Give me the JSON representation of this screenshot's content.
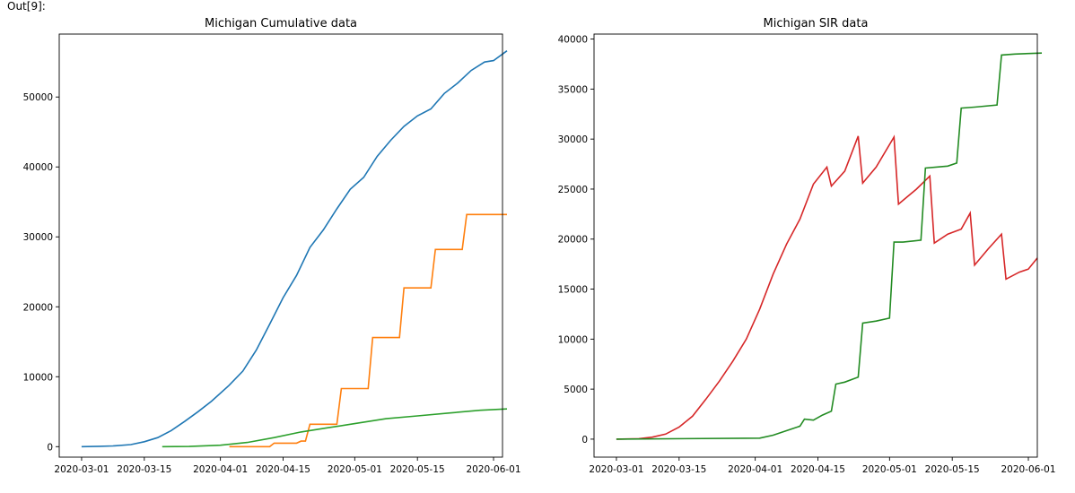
{
  "figure": {
    "label": "Out[9]:"
  },
  "chart_data": [
    {
      "type": "line",
      "title": "Michigan Cumulative data",
      "xlabel": "",
      "ylabel": "",
      "x_ticks": [
        "2020-03-01",
        "2020-03-15",
        "2020-04-01",
        "2020-04-15",
        "2020-05-01",
        "2020-05-15",
        "2020-06-01"
      ],
      "y_ticks": [
        "0",
        "10000",
        "20000",
        "30000",
        "40000",
        "50000"
      ],
      "xlim": [
        "2020-02-25",
        "2020-06-03"
      ],
      "ylim": [
        -1500,
        59000
      ],
      "grid": false,
      "series": [
        {
          "color": "#1f77b4",
          "points": [
            [
              "2020-03-01",
              0
            ],
            [
              "2020-03-05",
              50
            ],
            [
              "2020-03-08",
              100
            ],
            [
              "2020-03-12",
              300
            ],
            [
              "2020-03-15",
              700
            ],
            [
              "2020-03-18",
              1300
            ],
            [
              "2020-03-21",
              2300
            ],
            [
              "2020-03-24",
              3600
            ],
            [
              "2020-03-27",
              5000
            ],
            [
              "2020-03-30",
              6500
            ],
            [
              "2020-04-03",
              8800
            ],
            [
              "2020-04-06",
              10800
            ],
            [
              "2020-04-09",
              13800
            ],
            [
              "2020-04-12",
              17500
            ],
            [
              "2020-04-15",
              21300
            ],
            [
              "2020-04-18",
              24500
            ],
            [
              "2020-04-21",
              28500
            ],
            [
              "2020-04-24",
              31000
            ],
            [
              "2020-04-27",
              34000
            ],
            [
              "2020-04-30",
              36800
            ],
            [
              "2020-05-03",
              38500
            ],
            [
              "2020-05-06",
              41500
            ],
            [
              "2020-05-09",
              43800
            ],
            [
              "2020-05-12",
              45800
            ],
            [
              "2020-05-15",
              47300
            ],
            [
              "2020-05-18",
              48300
            ],
            [
              "2020-05-21",
              50500
            ],
            [
              "2020-05-24",
              52000
            ],
            [
              "2020-05-27",
              53800
            ],
            [
              "2020-05-30",
              55000
            ],
            [
              "2020-06-01",
              55200
            ],
            [
              "2020-06-04",
              56600
            ]
          ]
        },
        {
          "color": "#ff7f0e",
          "points": [
            [
              "2020-04-03",
              0
            ],
            [
              "2020-04-12",
              0
            ],
            [
              "2020-04-13",
              500
            ],
            [
              "2020-04-18",
              500
            ],
            [
              "2020-04-19",
              800
            ],
            [
              "2020-04-20",
              800
            ],
            [
              "2020-04-21",
              3200
            ],
            [
              "2020-04-27",
              3200
            ],
            [
              "2020-04-28",
              8300
            ],
            [
              "2020-05-04",
              8300
            ],
            [
              "2020-05-05",
              15600
            ],
            [
              "2020-05-11",
              15600
            ],
            [
              "2020-05-12",
              22700
            ],
            [
              "2020-05-18",
              22700
            ],
            [
              "2020-05-19",
              28200
            ],
            [
              "2020-05-25",
              28200
            ],
            [
              "2020-05-26",
              33200
            ],
            [
              "2020-06-04",
              33200
            ]
          ]
        },
        {
          "color": "#2ca02c",
          "points": [
            [
              "2020-03-19",
              0
            ],
            [
              "2020-03-25",
              20
            ],
            [
              "2020-04-01",
              200
            ],
            [
              "2020-04-07",
              600
            ],
            [
              "2020-04-13",
              1300
            ],
            [
              "2020-04-19",
              2100
            ],
            [
              "2020-04-25",
              2700
            ],
            [
              "2020-05-01",
              3300
            ],
            [
              "2020-05-08",
              4000
            ],
            [
              "2020-05-15",
              4400
            ],
            [
              "2020-05-22",
              4800
            ],
            [
              "2020-05-29",
              5200
            ],
            [
              "2020-06-04",
              5400
            ]
          ]
        }
      ]
    },
    {
      "type": "line",
      "title": "Michigan SIR data",
      "xlabel": "",
      "ylabel": "",
      "x_ticks": [
        "2020-03-01",
        "2020-03-15",
        "2020-04-01",
        "2020-04-15",
        "2020-05-01",
        "2020-05-15",
        "2020-06-01"
      ],
      "y_ticks": [
        "0",
        "5000",
        "10000",
        "15000",
        "20000",
        "25000",
        "30000",
        "35000",
        "40000"
      ],
      "xlim": [
        "2020-02-25",
        "2020-06-03"
      ],
      "ylim": [
        -1800,
        40500
      ],
      "grid": false,
      "series": [
        {
          "color": "#d62728",
          "points": [
            [
              "2020-03-01",
              0
            ],
            [
              "2020-03-06",
              50
            ],
            [
              "2020-03-09",
              200
            ],
            [
              "2020-03-12",
              500
            ],
            [
              "2020-03-15",
              1200
            ],
            [
              "2020-03-18",
              2300
            ],
            [
              "2020-03-21",
              4000
            ],
            [
              "2020-03-24",
              5800
            ],
            [
              "2020-03-27",
              7800
            ],
            [
              "2020-03-30",
              10000
            ],
            [
              "2020-04-02",
              13000
            ],
            [
              "2020-04-05",
              16500
            ],
            [
              "2020-04-08",
              19500
            ],
            [
              "2020-04-11",
              22000
            ],
            [
              "2020-04-14",
              25500
            ],
            [
              "2020-04-17",
              27200
            ],
            [
              "2020-04-18",
              25300
            ],
            [
              "2020-04-21",
              26800
            ],
            [
              "2020-04-24",
              30300
            ],
            [
              "2020-04-25",
              25600
            ],
            [
              "2020-04-28",
              27200
            ],
            [
              "2020-05-02",
              30200
            ],
            [
              "2020-05-03",
              23500
            ],
            [
              "2020-05-07",
              25000
            ],
            [
              "2020-05-10",
              26300
            ],
            [
              "2020-05-11",
              19600
            ],
            [
              "2020-05-14",
              20500
            ],
            [
              "2020-05-17",
              21000
            ],
            [
              "2020-05-19",
              22600
            ],
            [
              "2020-05-20",
              17400
            ],
            [
              "2020-05-23",
              19000
            ],
            [
              "2020-05-26",
              20500
            ],
            [
              "2020-05-27",
              16000
            ],
            [
              "2020-05-30",
              16700
            ],
            [
              "2020-06-01",
              17000
            ],
            [
              "2020-06-03",
              18100
            ]
          ]
        },
        {
          "color": "#228b22",
          "points": [
            [
              "2020-03-01",
              0
            ],
            [
              "2020-04-02",
              100
            ],
            [
              "2020-04-05",
              400
            ],
            [
              "2020-04-09",
              1000
            ],
            [
              "2020-04-11",
              1300
            ],
            [
              "2020-04-12",
              2000
            ],
            [
              "2020-04-14",
              1900
            ],
            [
              "2020-04-16",
              2400
            ],
            [
              "2020-04-18",
              2800
            ],
            [
              "2020-04-19",
              5500
            ],
            [
              "2020-04-21",
              5700
            ],
            [
              "2020-04-24",
              6200
            ],
            [
              "2020-04-25",
              11600
            ],
            [
              "2020-04-28",
              11800
            ],
            [
              "2020-05-01",
              12100
            ],
            [
              "2020-05-02",
              19700
            ],
            [
              "2020-05-04",
              19700
            ],
            [
              "2020-05-08",
              19900
            ],
            [
              "2020-05-09",
              27100
            ],
            [
              "2020-05-14",
              27300
            ],
            [
              "2020-05-16",
              27600
            ],
            [
              "2020-05-17",
              33100
            ],
            [
              "2020-05-20",
              33200
            ],
            [
              "2020-05-25",
              33400
            ],
            [
              "2020-05-26",
              38400
            ],
            [
              "2020-05-29",
              38500
            ],
            [
              "2020-06-04",
              38600
            ]
          ]
        }
      ]
    }
  ]
}
